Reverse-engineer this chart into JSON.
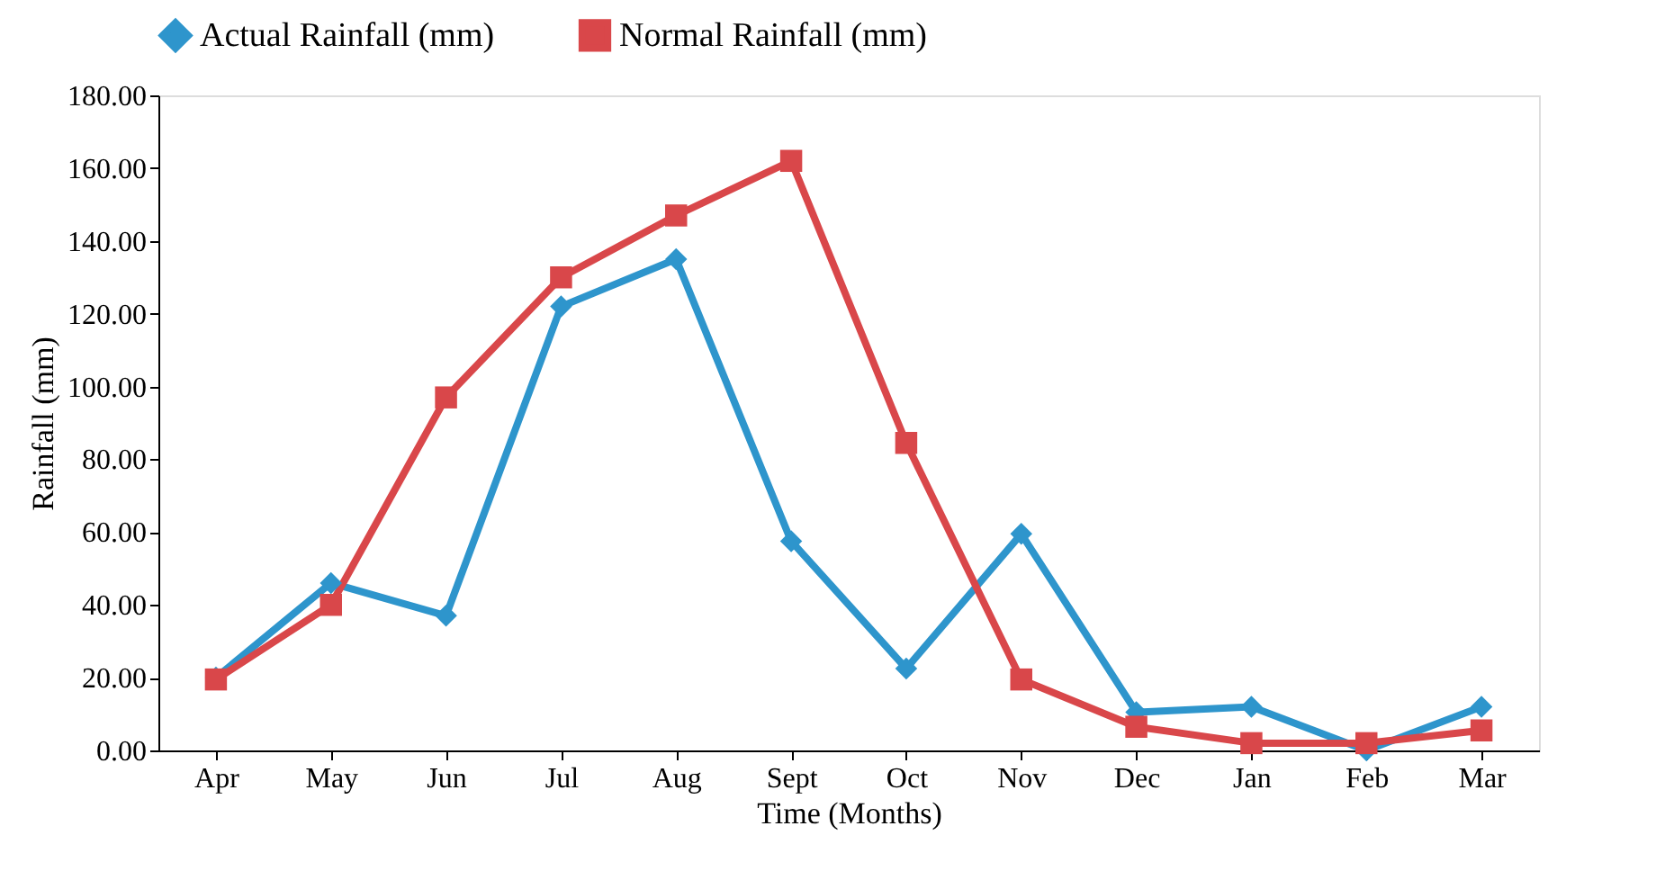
{
  "chart_data": {
    "type": "line",
    "xlabel": "Time (Months)",
    "ylabel": "Rainfall (mm)",
    "categories": [
      "Apr",
      "May",
      "Jun",
      "Jul",
      "Aug",
      "Sept",
      "Oct",
      "Nov",
      "Dec",
      "Jan",
      "Feb",
      "Mar"
    ],
    "series": [
      {
        "name": "Actual Rainfall (mm)",
        "color": "#2e95cc",
        "marker": "diamond",
        "values": [
          20,
          46,
          37,
          122,
          135,
          57.5,
          22.5,
          59.5,
          10.5,
          12,
          0,
          12
        ]
      },
      {
        "name": "Normal Rainfall (mm)",
        "color": "#d9474a",
        "marker": "square",
        "values": [
          19.5,
          40,
          97,
          130,
          147,
          162,
          84.5,
          19.5,
          6.5,
          2,
          2,
          5.5
        ]
      }
    ],
    "ylim": [
      0,
      180
    ],
    "yticks": [
      {
        "value": 0,
        "label": "0.00"
      },
      {
        "value": 20,
        "label": "20.00"
      },
      {
        "value": 40,
        "label": "40.00"
      },
      {
        "value": 60,
        "label": "60.00"
      },
      {
        "value": 80,
        "label": "80.00"
      },
      {
        "value": 100,
        "label": "100.00"
      },
      {
        "value": 120,
        "label": "120.00"
      },
      {
        "value": 140,
        "label": "140.00"
      },
      {
        "value": 160,
        "label": "160.00"
      },
      {
        "value": 180,
        "label": "180.00"
      }
    ],
    "grid": false,
    "legend": "top",
    "line_style": "solid"
  }
}
